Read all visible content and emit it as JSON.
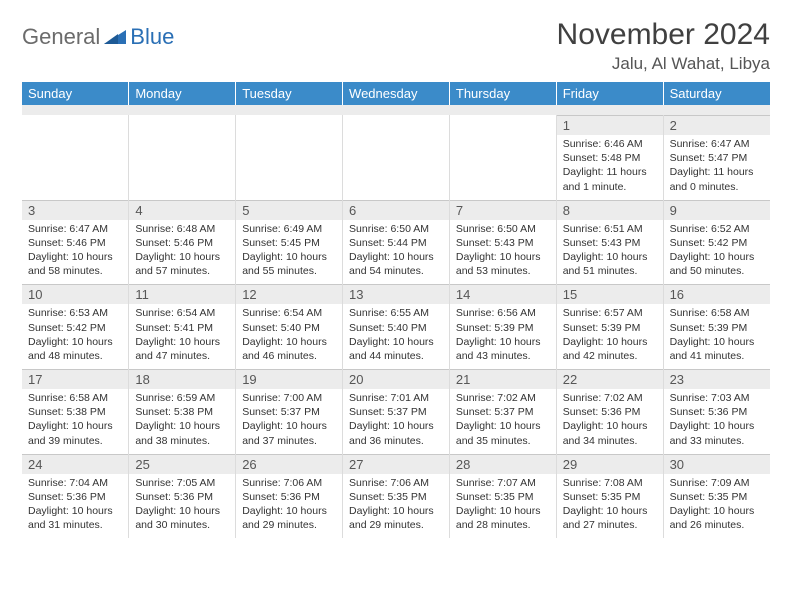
{
  "brand": {
    "word1": "General",
    "word2": "Blue"
  },
  "colors": {
    "brand_gray": "#6b6b6b",
    "brand_blue": "#2a6fb5",
    "header_bg": "#3b8bc9",
    "header_text": "#ffffff",
    "daynum_bg": "#ececec",
    "border": "#dcdcdc",
    "text": "#333333",
    "title": "#404040"
  },
  "typography": {
    "title_fontsize": 30,
    "location_fontsize": 17,
    "dayheader_fontsize": 13,
    "daynum_fontsize": 13,
    "body_fontsize": 10.5
  },
  "title": "November 2024",
  "location": "Jalu, Al Wahat, Libya",
  "day_headers": [
    "Sunday",
    "Monday",
    "Tuesday",
    "Wednesday",
    "Thursday",
    "Friday",
    "Saturday"
  ],
  "weeks": [
    [
      {
        "n": "",
        "lines": []
      },
      {
        "n": "",
        "lines": []
      },
      {
        "n": "",
        "lines": []
      },
      {
        "n": "",
        "lines": []
      },
      {
        "n": "",
        "lines": []
      },
      {
        "n": "1",
        "lines": [
          "Sunrise: 6:46 AM",
          "Sunset: 5:48 PM",
          "Daylight: 11 hours and 1 minute."
        ]
      },
      {
        "n": "2",
        "lines": [
          "Sunrise: 6:47 AM",
          "Sunset: 5:47 PM",
          "Daylight: 11 hours and 0 minutes."
        ]
      }
    ],
    [
      {
        "n": "3",
        "lines": [
          "Sunrise: 6:47 AM",
          "Sunset: 5:46 PM",
          "Daylight: 10 hours and 58 minutes."
        ]
      },
      {
        "n": "4",
        "lines": [
          "Sunrise: 6:48 AM",
          "Sunset: 5:46 PM",
          "Daylight: 10 hours and 57 minutes."
        ]
      },
      {
        "n": "5",
        "lines": [
          "Sunrise: 6:49 AM",
          "Sunset: 5:45 PM",
          "Daylight: 10 hours and 55 minutes."
        ]
      },
      {
        "n": "6",
        "lines": [
          "Sunrise: 6:50 AM",
          "Sunset: 5:44 PM",
          "Daylight: 10 hours and 54 minutes."
        ]
      },
      {
        "n": "7",
        "lines": [
          "Sunrise: 6:50 AM",
          "Sunset: 5:43 PM",
          "Daylight: 10 hours and 53 minutes."
        ]
      },
      {
        "n": "8",
        "lines": [
          "Sunrise: 6:51 AM",
          "Sunset: 5:43 PM",
          "Daylight: 10 hours and 51 minutes."
        ]
      },
      {
        "n": "9",
        "lines": [
          "Sunrise: 6:52 AM",
          "Sunset: 5:42 PM",
          "Daylight: 10 hours and 50 minutes."
        ]
      }
    ],
    [
      {
        "n": "10",
        "lines": [
          "Sunrise: 6:53 AM",
          "Sunset: 5:42 PM",
          "Daylight: 10 hours and 48 minutes."
        ]
      },
      {
        "n": "11",
        "lines": [
          "Sunrise: 6:54 AM",
          "Sunset: 5:41 PM",
          "Daylight: 10 hours and 47 minutes."
        ]
      },
      {
        "n": "12",
        "lines": [
          "Sunrise: 6:54 AM",
          "Sunset: 5:40 PM",
          "Daylight: 10 hours and 46 minutes."
        ]
      },
      {
        "n": "13",
        "lines": [
          "Sunrise: 6:55 AM",
          "Sunset: 5:40 PM",
          "Daylight: 10 hours and 44 minutes."
        ]
      },
      {
        "n": "14",
        "lines": [
          "Sunrise: 6:56 AM",
          "Sunset: 5:39 PM",
          "Daylight: 10 hours and 43 minutes."
        ]
      },
      {
        "n": "15",
        "lines": [
          "Sunrise: 6:57 AM",
          "Sunset: 5:39 PM",
          "Daylight: 10 hours and 42 minutes."
        ]
      },
      {
        "n": "16",
        "lines": [
          "Sunrise: 6:58 AM",
          "Sunset: 5:39 PM",
          "Daylight: 10 hours and 41 minutes."
        ]
      }
    ],
    [
      {
        "n": "17",
        "lines": [
          "Sunrise: 6:58 AM",
          "Sunset: 5:38 PM",
          "Daylight: 10 hours and 39 minutes."
        ]
      },
      {
        "n": "18",
        "lines": [
          "Sunrise: 6:59 AM",
          "Sunset: 5:38 PM",
          "Daylight: 10 hours and 38 minutes."
        ]
      },
      {
        "n": "19",
        "lines": [
          "Sunrise: 7:00 AM",
          "Sunset: 5:37 PM",
          "Daylight: 10 hours and 37 minutes."
        ]
      },
      {
        "n": "20",
        "lines": [
          "Sunrise: 7:01 AM",
          "Sunset: 5:37 PM",
          "Daylight: 10 hours and 36 minutes."
        ]
      },
      {
        "n": "21",
        "lines": [
          "Sunrise: 7:02 AM",
          "Sunset: 5:37 PM",
          "Daylight: 10 hours and 35 minutes."
        ]
      },
      {
        "n": "22",
        "lines": [
          "Sunrise: 7:02 AM",
          "Sunset: 5:36 PM",
          "Daylight: 10 hours and 34 minutes."
        ]
      },
      {
        "n": "23",
        "lines": [
          "Sunrise: 7:03 AM",
          "Sunset: 5:36 PM",
          "Daylight: 10 hours and 33 minutes."
        ]
      }
    ],
    [
      {
        "n": "24",
        "lines": [
          "Sunrise: 7:04 AM",
          "Sunset: 5:36 PM",
          "Daylight: 10 hours and 31 minutes."
        ]
      },
      {
        "n": "25",
        "lines": [
          "Sunrise: 7:05 AM",
          "Sunset: 5:36 PM",
          "Daylight: 10 hours and 30 minutes."
        ]
      },
      {
        "n": "26",
        "lines": [
          "Sunrise: 7:06 AM",
          "Sunset: 5:36 PM",
          "Daylight: 10 hours and 29 minutes."
        ]
      },
      {
        "n": "27",
        "lines": [
          "Sunrise: 7:06 AM",
          "Sunset: 5:35 PM",
          "Daylight: 10 hours and 29 minutes."
        ]
      },
      {
        "n": "28",
        "lines": [
          "Sunrise: 7:07 AM",
          "Sunset: 5:35 PM",
          "Daylight: 10 hours and 28 minutes."
        ]
      },
      {
        "n": "29",
        "lines": [
          "Sunrise: 7:08 AM",
          "Sunset: 5:35 PM",
          "Daylight: 10 hours and 27 minutes."
        ]
      },
      {
        "n": "30",
        "lines": [
          "Sunrise: 7:09 AM",
          "Sunset: 5:35 PM",
          "Daylight: 10 hours and 26 minutes."
        ]
      }
    ]
  ]
}
